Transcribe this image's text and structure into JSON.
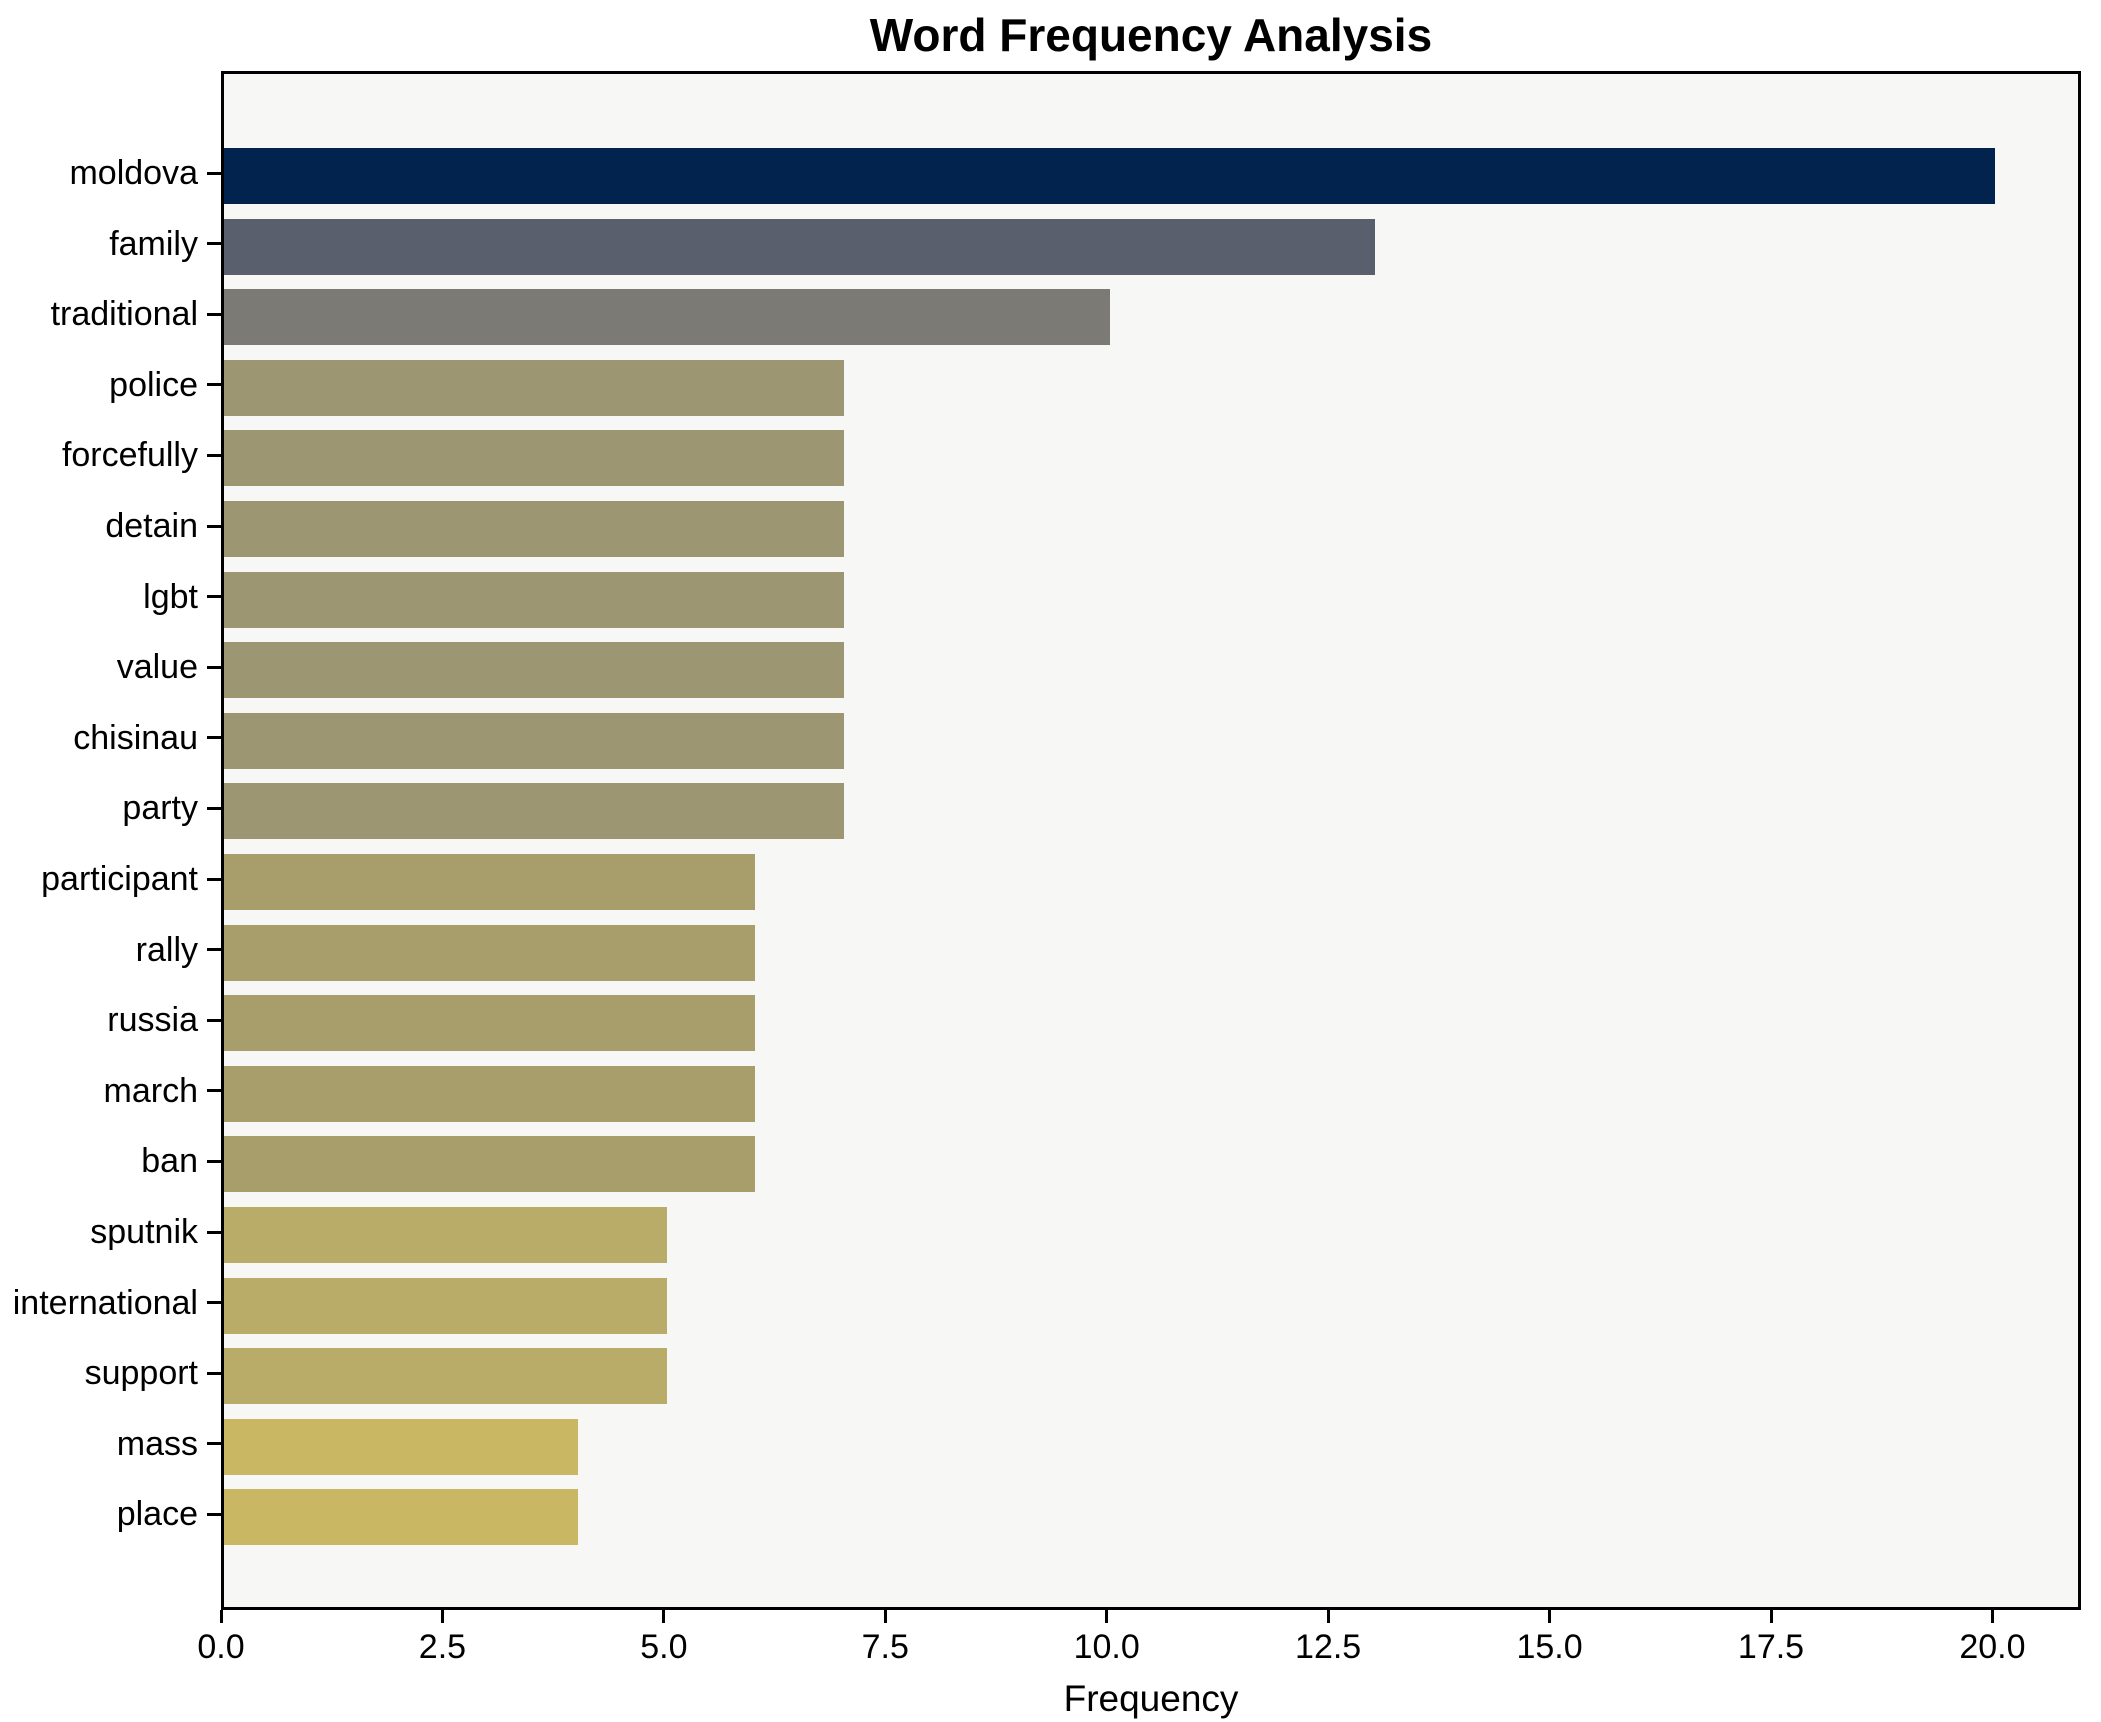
{
  "chart_data": {
    "type": "bar",
    "orientation": "horizontal",
    "title": "Word Frequency Analysis",
    "xlabel": "Frequency",
    "ylabel": "",
    "grid": false,
    "legend": null,
    "plot_background": "#f7f7f6",
    "spine_color": "#000000",
    "xlim": [
      0,
      21
    ],
    "xticks": [
      0.0,
      2.5,
      5.0,
      7.5,
      10.0,
      12.5,
      15.0,
      17.5,
      20.0
    ],
    "xtick_labels": [
      "0.0",
      "2.5",
      "5.0",
      "7.5",
      "10.0",
      "12.5",
      "15.0",
      "17.5",
      "20.0"
    ],
    "categories": [
      "moldova",
      "family",
      "traditional",
      "police",
      "forcefully",
      "detain",
      "lgbt",
      "value",
      "chisinau",
      "party",
      "participant",
      "rally",
      "russia",
      "march",
      "ban",
      "sputnik",
      "international",
      "support",
      "mass",
      "place"
    ],
    "values": [
      20,
      13,
      10,
      7,
      7,
      7,
      7,
      7,
      7,
      7,
      6,
      6,
      6,
      6,
      6,
      5,
      5,
      5,
      4,
      4
    ],
    "bar_colors": [
      "#02234d",
      "#5a5f6e",
      "#7b7a74",
      "#9d9673",
      "#9d9673",
      "#9d9673",
      "#9d9673",
      "#9d9673",
      "#9d9673",
      "#9d9673",
      "#a89e6c",
      "#a89e6c",
      "#a89e6c",
      "#a89e6c",
      "#a89e6c",
      "#b9ac69",
      "#b9ac69",
      "#b9ac69",
      "#c9b763",
      "#c9b763"
    ]
  }
}
